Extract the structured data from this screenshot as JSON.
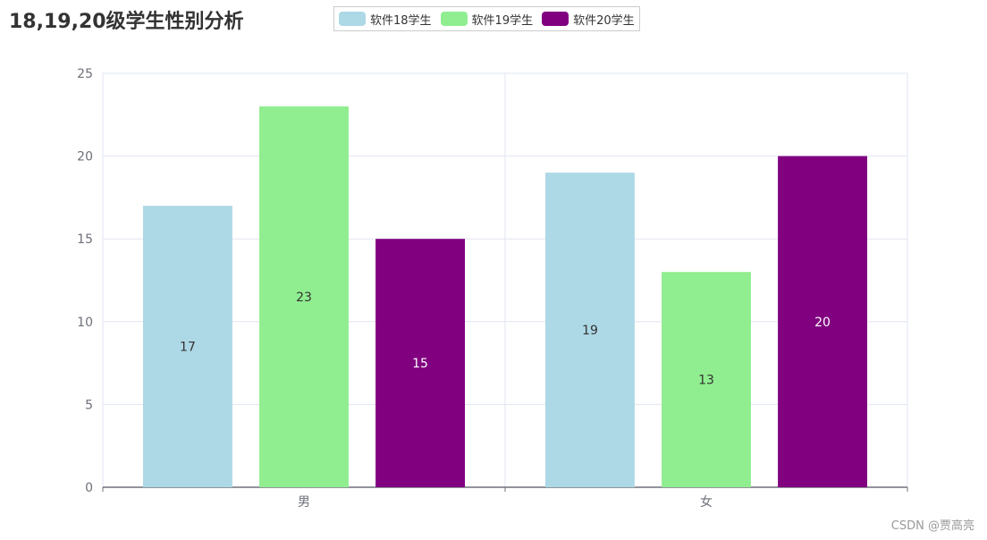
{
  "chart_data": {
    "type": "bar",
    "title": "18,19,20级学生性别分析",
    "categories": [
      "男",
      "女"
    ],
    "series": [
      {
        "name": "软件18学生",
        "values": [
          17,
          19
        ],
        "color": "#add8e6",
        "label_color": "#333333"
      },
      {
        "name": "软件19学生",
        "values": [
          23,
          13
        ],
        "color": "#90ee90",
        "label_color": "#333333"
      },
      {
        "name": "软件20学生",
        "values": [
          15,
          20
        ],
        "color": "#800080",
        "label_color": "#ffffff"
      }
    ],
    "ylim": [
      0,
      25
    ],
    "yticks": [
      0,
      5,
      10,
      15,
      20,
      25
    ],
    "xlabel": "",
    "ylabel": "",
    "grid": true,
    "legend_position": "top-center"
  },
  "watermark": "CSDN @贾高亮"
}
